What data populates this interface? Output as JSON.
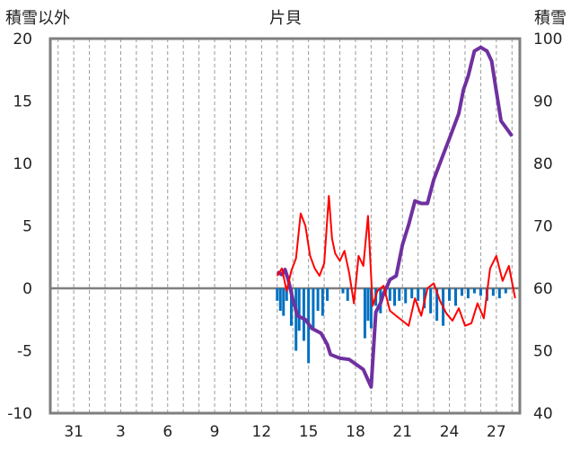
{
  "chart_data": {
    "type": "line",
    "title": "片貝",
    "ylabel_left": "積雪以外",
    "ylabel_right": "積雪",
    "ylim_left": [
      -10,
      20
    ],
    "ylim_right": [
      40,
      100
    ],
    "yticks_left": [
      "20",
      "15",
      "10",
      "5",
      "0",
      "-5",
      "-10"
    ],
    "yticks_right": [
      "100",
      "90",
      "80",
      "70",
      "60",
      "50",
      "40"
    ],
    "xticks": [
      "31",
      "3",
      "6",
      "9",
      "12",
      "15",
      "18",
      "21",
      "24",
      "27"
    ],
    "x_range_days": [
      29.5,
      59.5
    ],
    "grid": "vertical dashed daily",
    "colors": {
      "snow_depth": "#7030a0",
      "temperature": "#ff0000",
      "precipitation": "#0070c0",
      "zero_line": "#7f7f7f",
      "frame": "#7f7f7f"
    },
    "series": [
      {
        "axis": "right",
        "style": "line",
        "x": [
          44.0,
          44.3,
          44.5,
          44.7,
          45.0,
          45.3,
          45.8,
          46.2,
          46.8,
          47.2,
          47.4,
          48.0,
          48.6,
          49.5,
          50.0,
          50.3,
          50.6,
          50.8,
          51.0,
          51.2,
          51.6,
          52.0,
          52.4,
          52.8,
          53.2,
          53.6,
          54.0,
          54.6,
          55.0,
          55.6,
          55.9,
          56.2,
          56.6,
          57.0,
          57.4,
          57.7,
          58.0,
          58.3,
          58.6,
          59.0
        ],
        "y": [
          62.6,
          62.2,
          63.0,
          61.4,
          58.2,
          55.6,
          55.0,
          53.6,
          52.8,
          51.0,
          49.4,
          48.8,
          48.6,
          47.0,
          44.2,
          56.2,
          57.6,
          59.2,
          60.2,
          61.4,
          62.0,
          67.0,
          70.2,
          74.0,
          73.6,
          73.6,
          77.4,
          81.4,
          84.0,
          88.0,
          91.8,
          94.0,
          98.0,
          98.6,
          98.0,
          96.4,
          91.6,
          86.8,
          85.8,
          84.4
        ]
      },
      {
        "axis": "left",
        "style": "line",
        "x": [
          44.0,
          44.3,
          44.6,
          44.9,
          45.2,
          45.5,
          45.8,
          46.1,
          46.4,
          46.7,
          47.0,
          47.3,
          47.5,
          47.7,
          48.0,
          48.3,
          48.6,
          48.9,
          49.2,
          49.5,
          49.8,
          50.1,
          50.4,
          50.8,
          51.2,
          51.6,
          52.0,
          52.4,
          52.8,
          53.2,
          53.6,
          54.0,
          54.4,
          54.8,
          55.2,
          55.6,
          56.0,
          56.4,
          56.8,
          57.2,
          57.6,
          58.0,
          58.4,
          58.8,
          59.2
        ],
        "y": [
          1.0,
          1.6,
          -0.2,
          1.4,
          2.4,
          6.0,
          5.0,
          2.6,
          1.6,
          1.0,
          2.0,
          7.4,
          4.0,
          2.8,
          2.2,
          3.0,
          1.2,
          -1.2,
          2.6,
          1.8,
          5.8,
          -1.4,
          -0.2,
          0.2,
          -1.8,
          -2.2,
          -2.6,
          -3.0,
          -0.8,
          -2.2,
          0.0,
          0.4,
          -1.0,
          -2.0,
          -2.6,
          -1.6,
          -3.0,
          -2.8,
          -1.2,
          -2.4,
          1.6,
          2.6,
          0.6,
          1.8,
          -0.8
        ]
      },
      {
        "axis": "left",
        "style": "bar",
        "x": [
          44.0,
          44.2,
          44.4,
          44.6,
          44.9,
          45.2,
          45.4,
          45.7,
          46.0,
          46.3,
          46.6,
          46.9,
          47.2,
          48.2,
          48.5,
          49.6,
          49.8,
          50.0,
          50.3,
          50.6,
          50.9,
          51.2,
          51.5,
          51.8,
          52.2,
          52.6,
          53.0,
          53.4,
          53.8,
          54.2,
          54.6,
          55.0,
          55.4,
          55.8,
          56.2,
          56.6,
          57.0,
          57.4,
          57.8,
          58.2,
          58.6
        ],
        "y": [
          -1.0,
          -1.8,
          -2.2,
          -1.0,
          -3.0,
          -5.0,
          -3.4,
          -4.2,
          -6.0,
          -3.2,
          -1.8,
          -2.2,
          -1.0,
          -0.4,
          -1.0,
          -4.0,
          -2.6,
          -3.2,
          -1.4,
          -2.0,
          -0.6,
          -1.0,
          -1.4,
          -1.0,
          -1.2,
          -0.8,
          -1.0,
          -1.6,
          -2.0,
          -2.6,
          -3.0,
          -1.0,
          -1.4,
          -0.6,
          -0.8,
          -0.4,
          -0.6,
          -1.0,
          -0.6,
          -0.8,
          -0.4
        ]
      }
    ]
  }
}
